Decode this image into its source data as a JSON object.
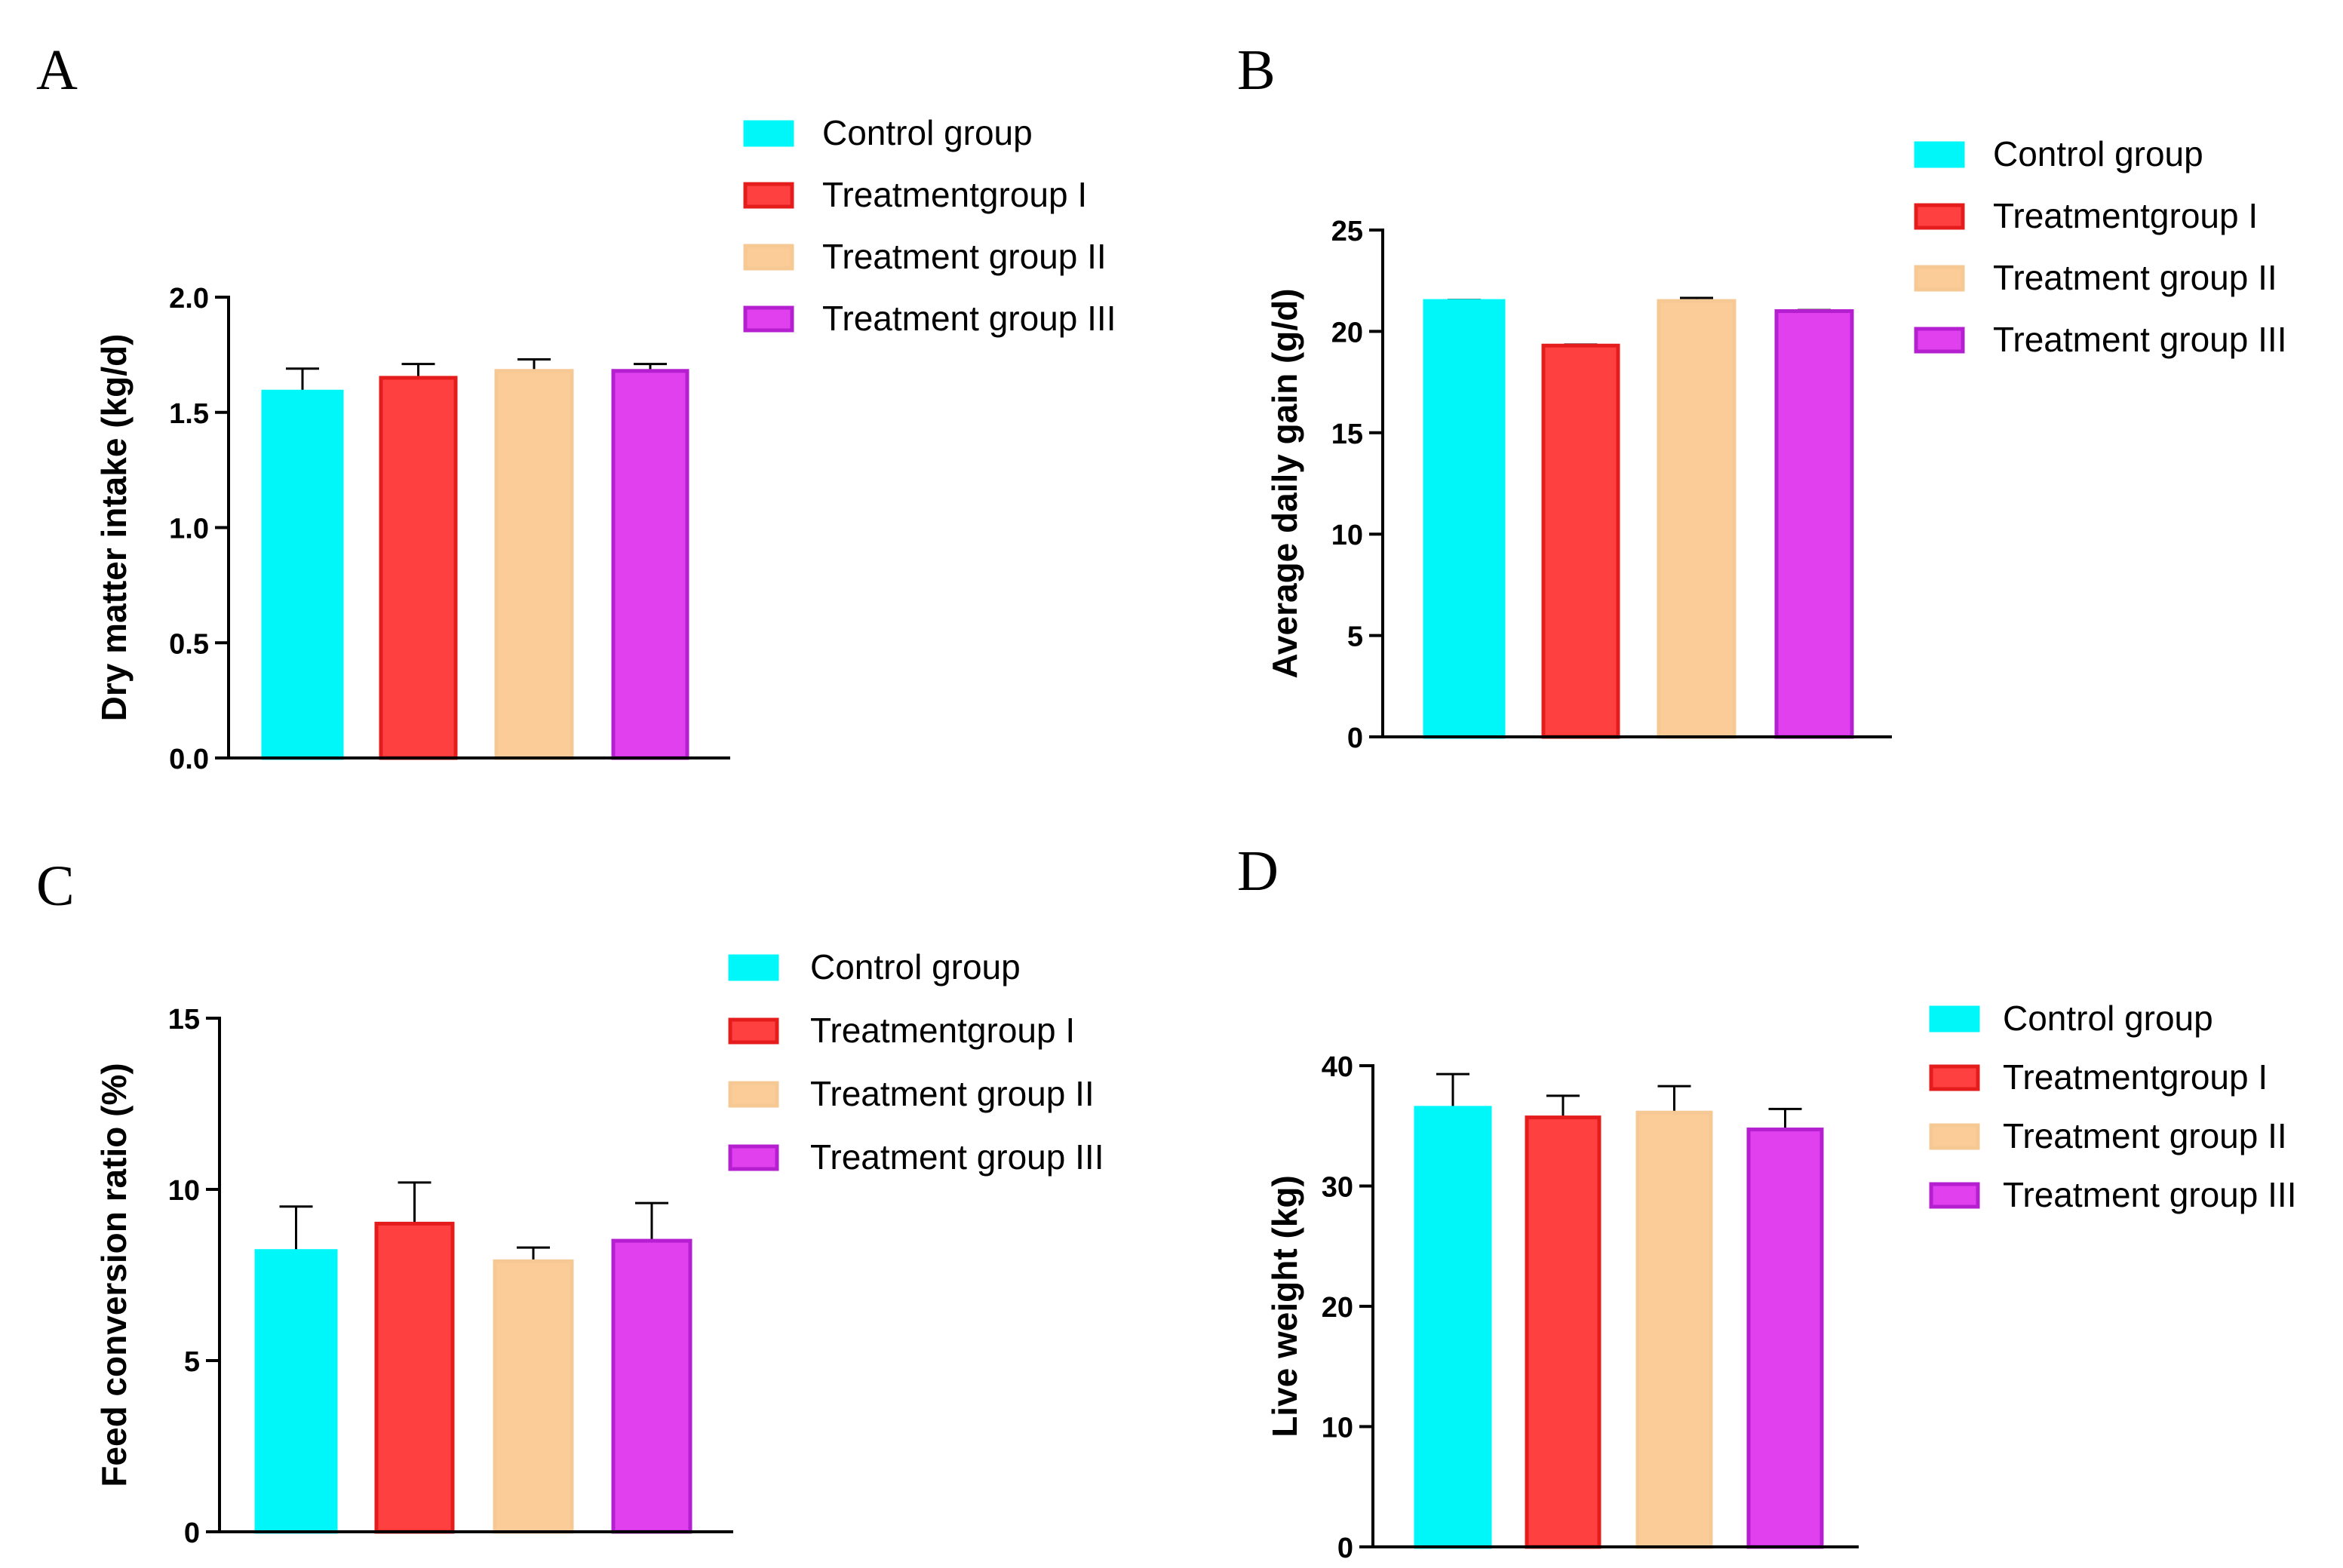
{
  "chart_data": [
    {
      "panel": "A",
      "type": "bar",
      "categories": [
        "Control group",
        "Treatmentgroup I",
        "Treatment group II",
        "Treatment group III"
      ],
      "values": [
        1.59,
        1.65,
        1.68,
        1.68
      ],
      "errors": [
        0.1,
        0.06,
        0.05,
        0.03
      ],
      "ylabel": "Dry matter intake (kg/d)",
      "ylim": [
        0,
        2.0
      ],
      "yticks": [
        0,
        0.5,
        1.0,
        1.5,
        2.0
      ],
      "yticklabels": [
        "0.0",
        "0.5",
        "1.0",
        "1.5",
        "2.0"
      ],
      "legend": [
        "Control group",
        "Treatmentgroup I",
        "Treatment group II",
        "Treatment group III"
      ]
    },
    {
      "panel": "B",
      "type": "bar",
      "categories": [
        "Control group",
        "Treatmentgroup I",
        "Treatment group II",
        "Treatment group III"
      ],
      "values": [
        21.5,
        19.3,
        21.5,
        21.0
      ],
      "errors": [
        0.05,
        0.05,
        0.15,
        0.05
      ],
      "ylabel": "Average daily gain (g/d)",
      "ylim": [
        0,
        25
      ],
      "yticks": [
        0,
        5,
        10,
        15,
        20,
        25
      ],
      "yticklabels": [
        "0",
        "5",
        "10",
        "15",
        "20",
        "25"
      ],
      "legend": [
        "Control group",
        "Treatmentgroup I",
        "Treatment group II",
        "Treatment group III"
      ]
    },
    {
      "panel": "C",
      "type": "bar",
      "categories": [
        "Control group",
        "Treatmentgroup I",
        "Treatment group II",
        "Treatment group III"
      ],
      "values": [
        8.2,
        9.0,
        7.9,
        8.5
      ],
      "errors": [
        1.3,
        1.2,
        0.4,
        1.1
      ],
      "ylabel": "Feed conversion ratio (%)",
      "ylim": [
        0,
        15
      ],
      "yticks": [
        0,
        5,
        10,
        15
      ],
      "yticklabels": [
        "0",
        "5",
        "10",
        "15"
      ],
      "legend": [
        "Control group",
        "Treatmentgroup I",
        "Treatment group II",
        "Treatment group III"
      ]
    },
    {
      "panel": "D",
      "type": "bar",
      "categories": [
        "Control group",
        "Treatmentgroup I",
        "Treatment group II",
        "Treatment group III"
      ],
      "values": [
        36.5,
        35.7,
        36.1,
        34.7
      ],
      "errors": [
        2.8,
        1.8,
        2.2,
        1.7
      ],
      "ylabel": "Live weight (kg)",
      "ylim": [
        0,
        40
      ],
      "yticks": [
        0,
        10,
        20,
        30,
        40
      ],
      "yticklabels": [
        "0",
        "10",
        "20",
        "30",
        "40"
      ],
      "legend": [
        "Control group",
        "Treatmentgroup I",
        "Treatment group II",
        "Treatment group III"
      ]
    }
  ],
  "colors": {
    "fills": [
      "#00f7f9",
      "#ff4040",
      "#fccc98",
      "#e040ee"
    ],
    "strokes": [
      "#00f7f9",
      "#e51c1c",
      "#f5c894",
      "#b41fd0"
    ]
  }
}
